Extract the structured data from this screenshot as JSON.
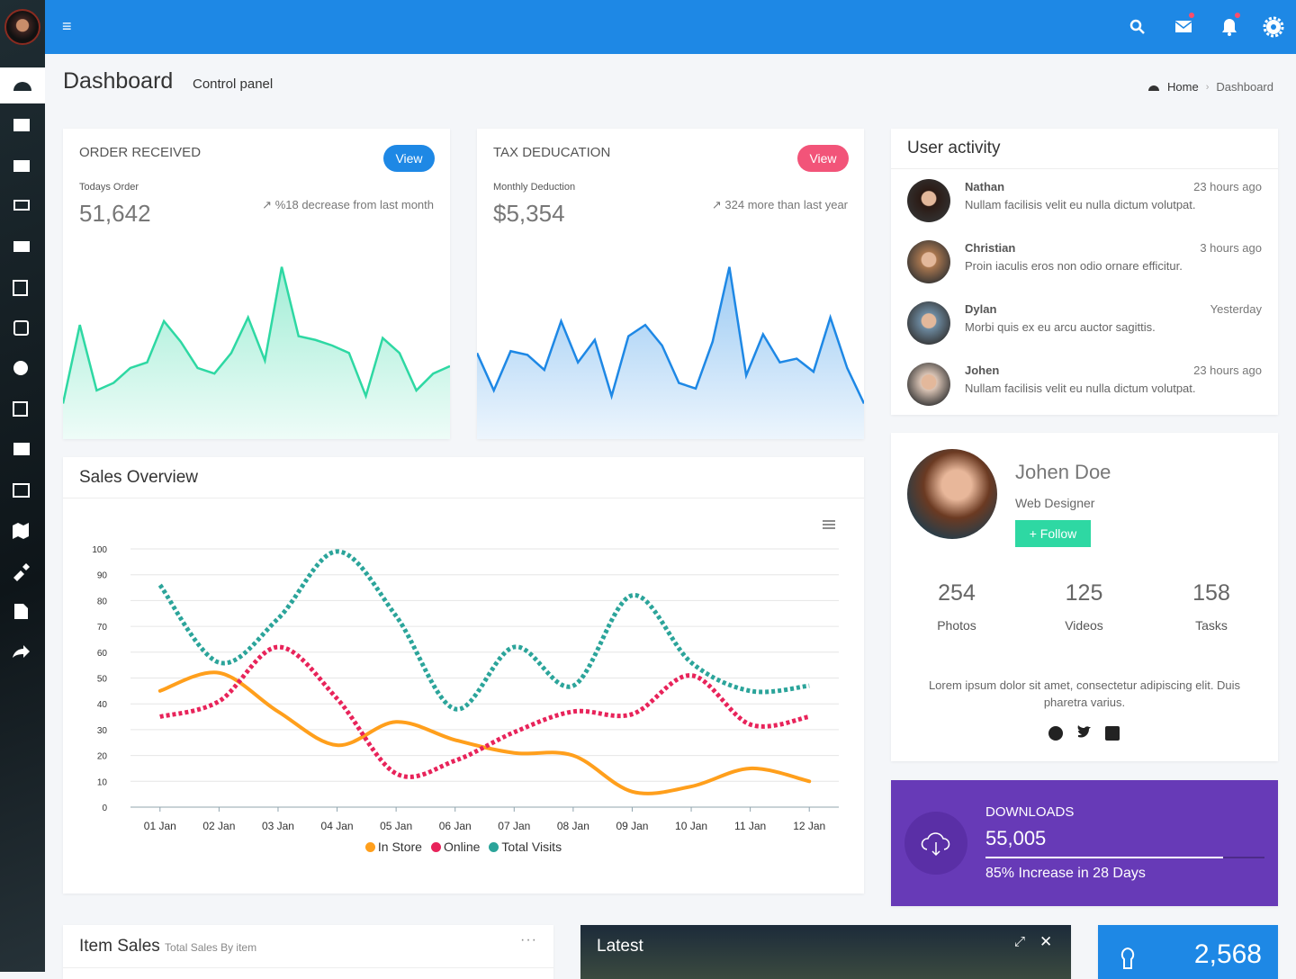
{
  "header": {
    "menu": "≡"
  },
  "page": {
    "title": "Dashboard",
    "subtitle": "Control panel",
    "breadcrumb": [
      "Home",
      "Dashboard"
    ]
  },
  "order_card": {
    "title": "ORDER RECEIVED",
    "button": "View",
    "label": "Todays Order",
    "value": "51,642",
    "trend": "%18 decrease from last month",
    "chart": {
      "type": "area",
      "color": "#2ed8a3",
      "ylim": [
        0,
        100
      ],
      "values": [
        19,
        61,
        26,
        30,
        38,
        41,
        63,
        52,
        38,
        35,
        46,
        65,
        42,
        92,
        55,
        53,
        50,
        46,
        23,
        54,
        46,
        26,
        35,
        39
      ]
    }
  },
  "tax_card": {
    "title": "TAX DEDUCATION",
    "button": "View",
    "label": "Monthly Deduction",
    "value": "$5,354",
    "trend": "324 more than last year",
    "chart": {
      "type": "area",
      "color": "#1e88e5",
      "ylim": [
        0,
        100
      ],
      "values": [
        46,
        26,
        47,
        45,
        37,
        63,
        41,
        53,
        23,
        55,
        61,
        50,
        30,
        27,
        52,
        92,
        34,
        56,
        41,
        43,
        36,
        65,
        38,
        19
      ]
    }
  },
  "sales": {
    "title": "Sales Overview",
    "chart_data": {
      "type": "line",
      "categories": [
        "01 Jan",
        "02 Jan",
        "03 Jan",
        "04 Jan",
        "05 Jan",
        "06 Jan",
        "07 Jan",
        "08 Jan",
        "09 Jan",
        "10 Jan",
        "11 Jan",
        "12 Jan"
      ],
      "ylim": [
        0,
        100
      ],
      "yticks": [
        0,
        10,
        20,
        30,
        40,
        50,
        60,
        70,
        80,
        90,
        100
      ],
      "grid": true,
      "series": [
        {
          "name": "In Store",
          "color": "#ff9f1c",
          "dashed": false,
          "values": [
            45,
            52,
            37,
            24,
            33,
            26,
            21,
            20,
            6,
            8,
            15,
            10
          ]
        },
        {
          "name": "Online",
          "color": "#e8235a",
          "dashed": true,
          "values": [
            35,
            41,
            62,
            42,
            13,
            18,
            29,
            37,
            36,
            51,
            32,
            35
          ]
        },
        {
          "name": "Total Visits",
          "color": "#2ba49a",
          "dashed": true,
          "values": [
            86,
            56,
            73,
            99,
            74,
            38,
            62,
            47,
            82,
            56,
            45,
            47
          ]
        }
      ]
    }
  },
  "activity": {
    "title": "User activity",
    "items": [
      {
        "name": "Nathan",
        "time": "23 hours ago",
        "text": "Nullam facilisis velit eu nulla dictum volutpat."
      },
      {
        "name": "Christian",
        "time": "3 hours ago",
        "text": "Proin iaculis eros non odio ornare efficitur."
      },
      {
        "name": "Dylan",
        "time": "Yesterday",
        "text": "Morbi quis ex eu arcu auctor sagittis."
      },
      {
        "name": "Johen",
        "time": "23 hours ago",
        "text": "Nullam facilisis velit eu nulla dictum volutpat."
      }
    ]
  },
  "profile": {
    "name": "Johen Doe",
    "role": "Web Designer",
    "button": "Follow",
    "stats": [
      {
        "value": "254",
        "label": "Photos"
      },
      {
        "value": "125",
        "label": "Videos"
      },
      {
        "value": "158",
        "label": "Tasks"
      }
    ],
    "bio": "Lorem ipsum dolor sit amet, consectetur adipiscing elit. Duis pharetra varius."
  },
  "downloads": {
    "title": "DOWNLOADS",
    "value": "55,005",
    "progress": 85,
    "note": "85% Increase in 28 Days"
  },
  "item_sales": {
    "title": "Item Sales",
    "subtitle": "Total Sales By item"
  },
  "latest": {
    "title": "Latest"
  },
  "counter": {
    "value": "2,568"
  }
}
